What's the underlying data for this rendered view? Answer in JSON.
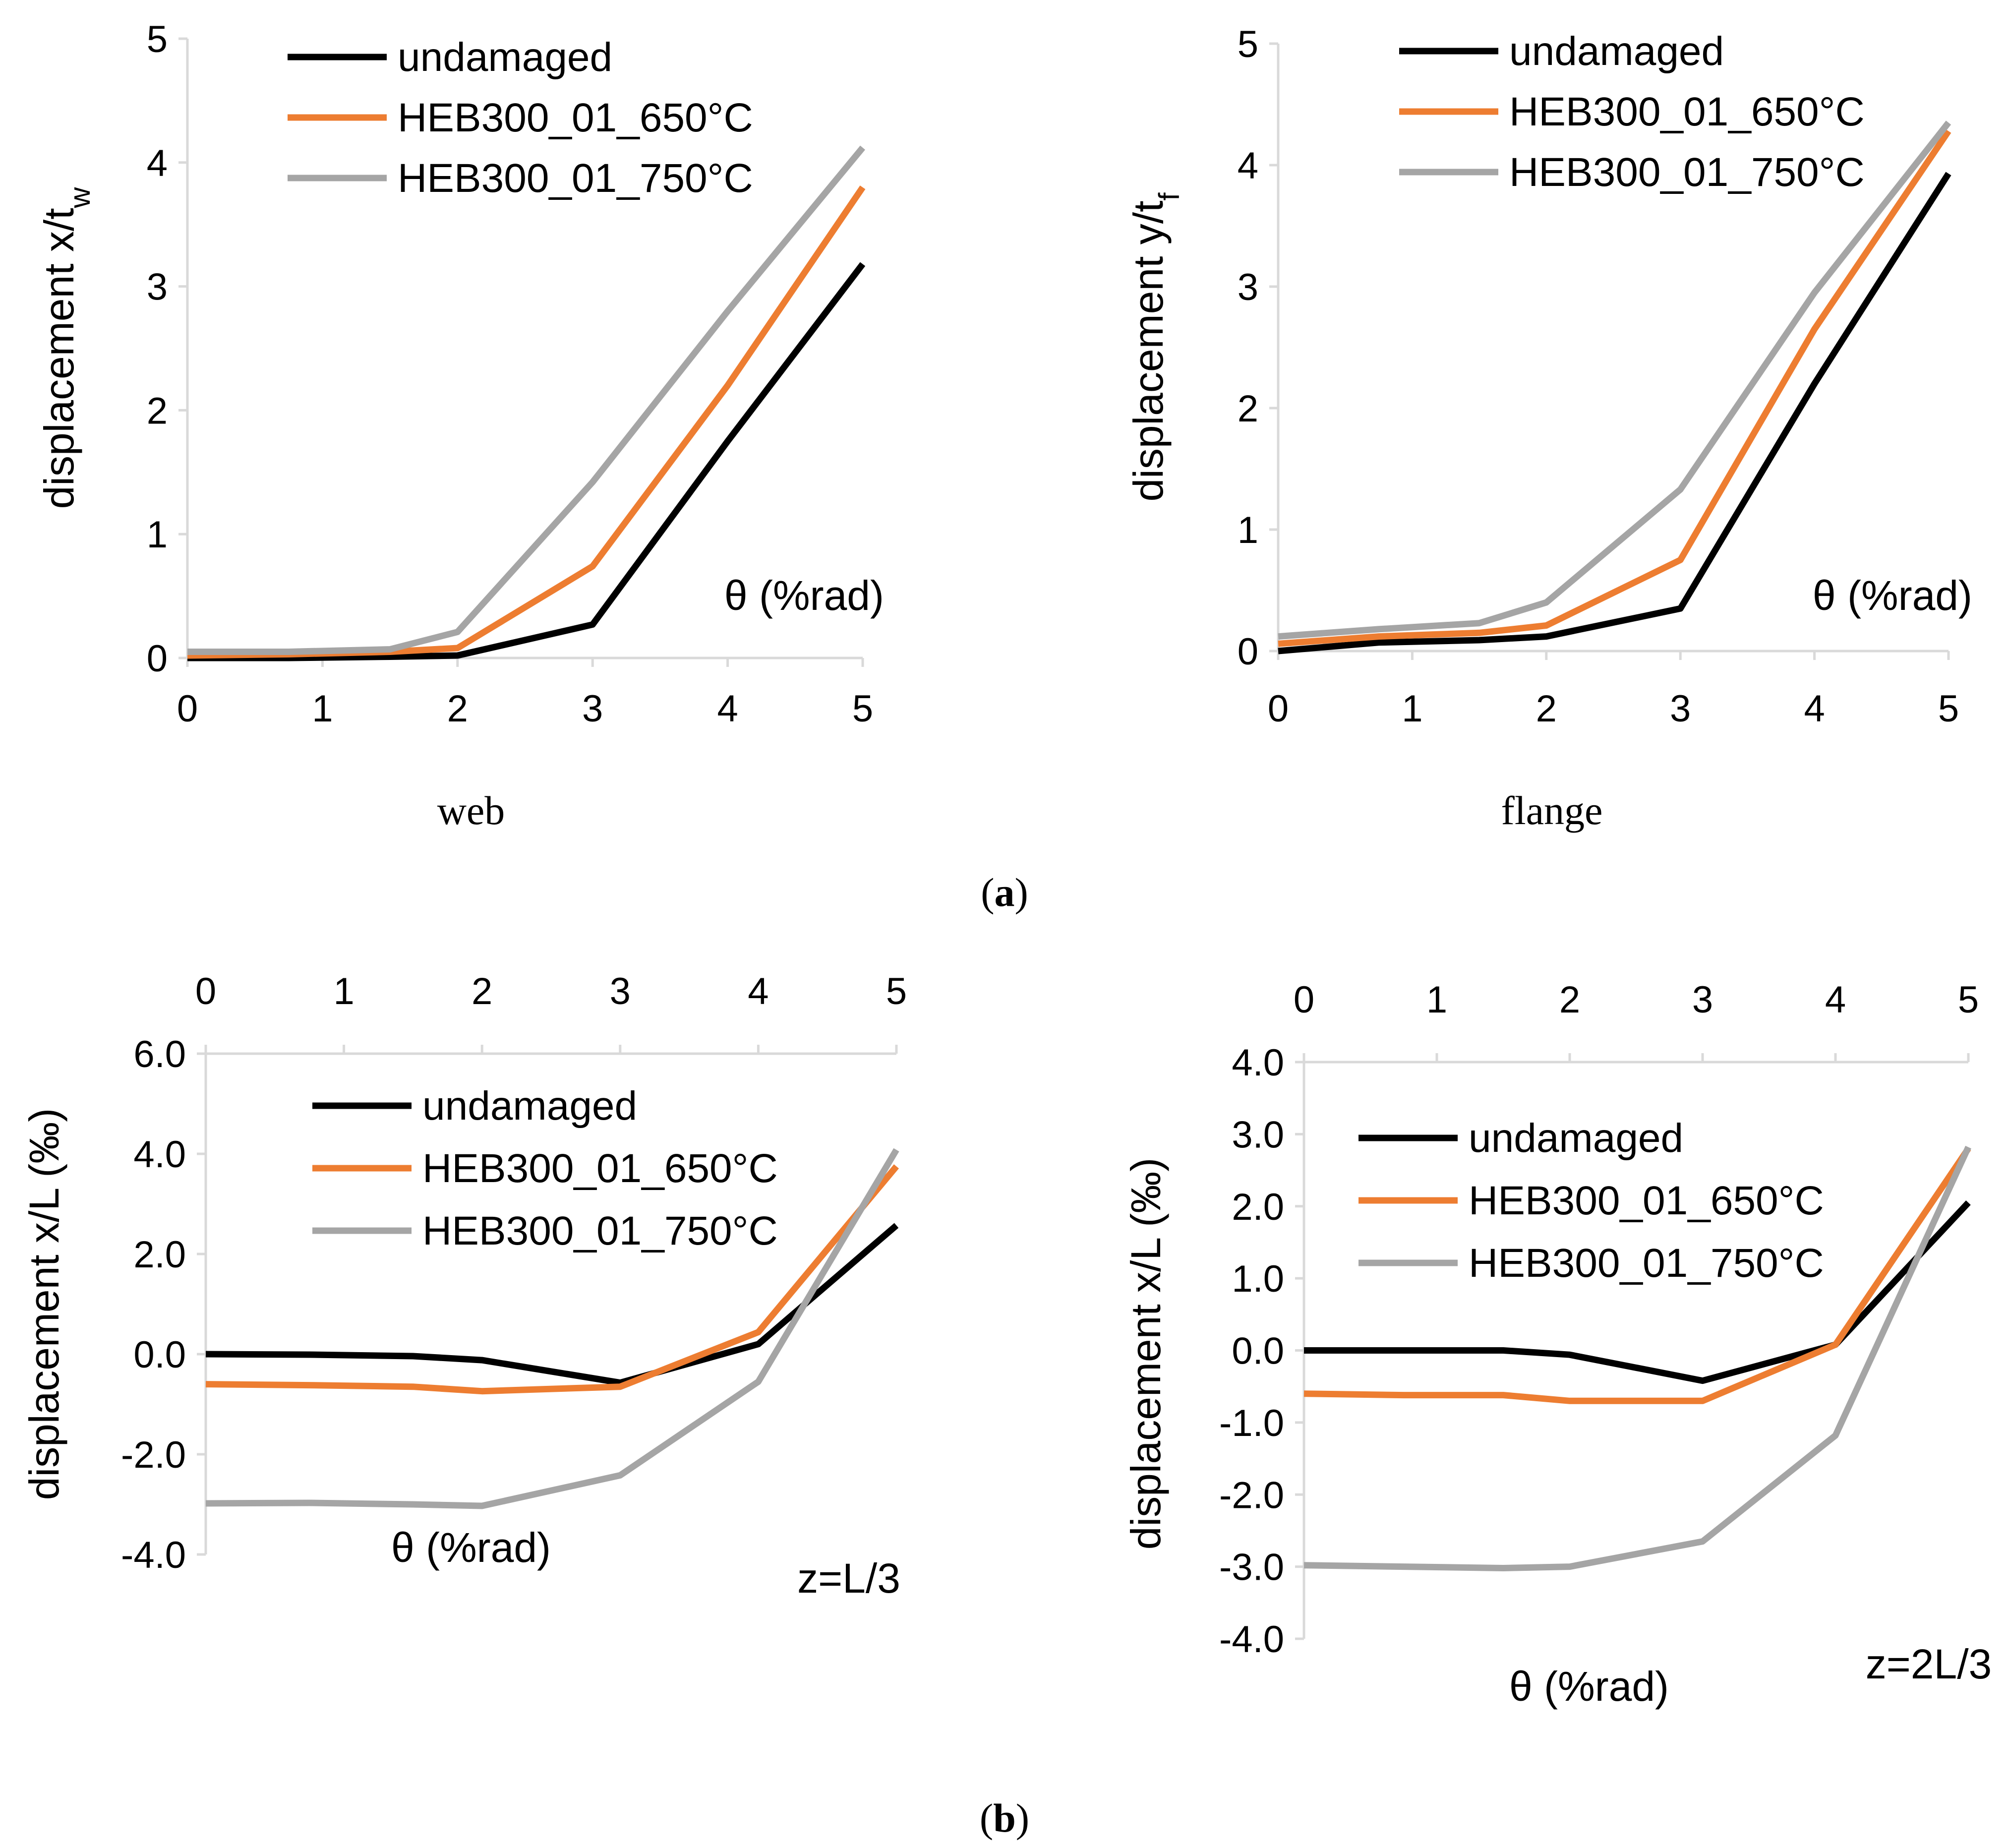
{
  "figure": {
    "caption_a_open": "(",
    "caption_a_letter": "a",
    "caption_a_close": ")",
    "caption_b_open": "(",
    "caption_b_letter": "b",
    "caption_b_close": ")"
  },
  "colors": {
    "undamaged": "#000000",
    "HEB300_01_650°C": "#ed7d31",
    "HEB300_01_750°C": "#a5a5a5",
    "axis": "#d9d9d9"
  },
  "chart_data": [
    {
      "id": "web",
      "type": "line",
      "title": "web",
      "ylabel": "displacement x/t",
      "ylabel_sub": "w",
      "note": "θ (%rad)",
      "xlim": [
        0,
        5
      ],
      "ylim": [
        0,
        5
      ],
      "xticks": [
        "0",
        "1",
        "2",
        "3",
        "4",
        "5"
      ],
      "yticks": [
        "0",
        "1",
        "2",
        "3",
        "4",
        "5"
      ],
      "legend": [
        "undamaged",
        "HEB300_01_650°C",
        "HEB300_01_750°C"
      ],
      "series": [
        {
          "name": "undamaged",
          "x": [
            0,
            0.75,
            1.5,
            2,
            3,
            4,
            5
          ],
          "y": [
            0,
            0,
            0.01,
            0.02,
            0.27,
            1.75,
            3.18
          ]
        },
        {
          "name": "HEB300_01_650°C",
          "x": [
            0,
            0.75,
            1.5,
            2,
            3,
            4,
            5
          ],
          "y": [
            0.02,
            0.03,
            0.05,
            0.08,
            0.74,
            2.2,
            3.8
          ]
        },
        {
          "name": "HEB300_01_750°C",
          "x": [
            0,
            0.75,
            1.5,
            2,
            3,
            4,
            5
          ],
          "y": [
            0.05,
            0.05,
            0.07,
            0.21,
            1.42,
            2.8,
            4.12
          ]
        }
      ]
    },
    {
      "id": "flange",
      "type": "line",
      "title": "flange",
      "ylabel": "displacement y/t",
      "ylabel_sub": "f",
      "note": "θ (%rad)",
      "xlim": [
        0,
        5
      ],
      "ylim": [
        0,
        5
      ],
      "xticks": [
        "0",
        "1",
        "2",
        "3",
        "4",
        "5"
      ],
      "yticks": [
        "0",
        "1",
        "2",
        "3",
        "4",
        "5"
      ],
      "legend": [
        "undamaged",
        "HEB300_01_650°C",
        "HEB300_01_750°C"
      ],
      "series": [
        {
          "name": "undamaged",
          "x": [
            0,
            0.75,
            1.5,
            2,
            3,
            4,
            5
          ],
          "y": [
            0,
            0.07,
            0.09,
            0.12,
            0.35,
            2.2,
            3.93
          ]
        },
        {
          "name": "HEB300_01_650°C",
          "x": [
            0,
            0.75,
            1.5,
            2,
            3,
            4,
            5
          ],
          "y": [
            0.06,
            0.12,
            0.15,
            0.21,
            0.75,
            2.65,
            4.28
          ]
        },
        {
          "name": "HEB300_01_750°C",
          "x": [
            0,
            0.75,
            1.5,
            2,
            3,
            4,
            5
          ],
          "y": [
            0.12,
            0.18,
            0.23,
            0.4,
            1.33,
            2.95,
            4.35
          ]
        }
      ]
    },
    {
      "id": "z_L3",
      "type": "line",
      "title": "",
      "ylabel": "displacement x/L (‰)",
      "note": "θ (%rad)",
      "annotation": "z=L/3",
      "xlim": [
        0,
        5
      ],
      "ylim": [
        -4,
        6
      ],
      "xticks": [
        "0",
        "1",
        "2",
        "3",
        "4",
        "5"
      ],
      "yticks": [
        "-4.0",
        "-2.0",
        "0.0",
        "2.0",
        "4.0",
        "6.0"
      ],
      "legend": [
        "undamaged",
        "HEB300_01_650°C",
        "HEB300_01_750°C"
      ],
      "series": [
        {
          "name": "undamaged",
          "x": [
            0,
            0.75,
            1.5,
            2,
            3,
            4,
            5
          ],
          "y": [
            0,
            -0.01,
            -0.04,
            -0.12,
            -0.57,
            0.2,
            2.57
          ]
        },
        {
          "name": "HEB300_01_650°C",
          "x": [
            0,
            0.75,
            1.5,
            2,
            3,
            4,
            5
          ],
          "y": [
            -0.6,
            -0.62,
            -0.65,
            -0.74,
            -0.65,
            0.44,
            3.75
          ]
        },
        {
          "name": "HEB300_01_750°C",
          "x": [
            0,
            0.75,
            1.5,
            2,
            3,
            4,
            5
          ],
          "y": [
            -2.98,
            -2.97,
            -3.0,
            -3.03,
            -2.42,
            -0.55,
            4.08
          ]
        }
      ]
    },
    {
      "id": "z_2L3",
      "type": "line",
      "title": "",
      "ylabel": "displacement x/L (‰)",
      "note": "θ (%rad)",
      "annotation": "z=2L/3",
      "xlim": [
        0,
        5
      ],
      "ylim": [
        -4,
        4
      ],
      "xticks": [
        "0",
        "1",
        "2",
        "3",
        "4",
        "5"
      ],
      "yticks": [
        "-4.0",
        "-3.0",
        "-2.0",
        "-1.0",
        "0.0",
        "1.0",
        "2.0",
        "3.0",
        "4.0"
      ],
      "legend": [
        "undamaged",
        "HEB300_01_650°C",
        "HEB300_01_750°C"
      ],
      "series": [
        {
          "name": "undamaged",
          "x": [
            0,
            0.75,
            1.5,
            2,
            3,
            4,
            5
          ],
          "y": [
            0,
            0,
            0,
            -0.06,
            -0.42,
            0.08,
            2.05
          ]
        },
        {
          "name": "HEB300_01_650°C",
          "x": [
            0,
            0.75,
            1.5,
            2,
            3,
            4,
            5
          ],
          "y": [
            -0.6,
            -0.62,
            -0.62,
            -0.7,
            -0.7,
            0.08,
            2.8
          ]
        },
        {
          "name": "HEB300_01_750°C",
          "x": [
            0,
            0.75,
            1.5,
            2,
            3,
            4,
            5
          ],
          "y": [
            -2.98,
            -3.0,
            -3.02,
            -3.0,
            -2.65,
            -1.18,
            2.82
          ]
        }
      ]
    }
  ]
}
